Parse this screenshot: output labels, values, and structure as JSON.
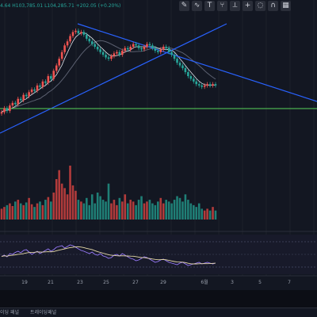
{
  "ohlc_legend": {
    "open_partial": "4.64",
    "high": "H103,785.01",
    "low": "L104,285.71",
    "change": "+202.05 (+0.20%)"
  },
  "toolbar_icons": [
    "pencil-icon",
    "brush-icon",
    "text-icon",
    "fork-icon",
    "ruler-icon",
    "plus-icon",
    "hide-icon",
    "magnet-icon",
    "bars-icon"
  ],
  "tabs": {
    "tab1": "이딩 패널",
    "tab2": "트레이딩패널"
  },
  "colors": {
    "up": "#ef5350",
    "down": "#26a69a",
    "trendline": "#2962ff",
    "support": "#4caf50",
    "ma1": "#e0e3eb",
    "ma2": "#5b6070",
    "rsi": "#9b7cff"
  },
  "chart_data": [
    {
      "type": "candlestick",
      "xlabel": "",
      "ylabel": "",
      "x_ticks": [
        "19",
        "21",
        "23",
        "25",
        "27",
        "29",
        "6월",
        "3",
        "5",
        "7"
      ],
      "note_values": "price axis not visible; close values in relative index units (0-100)",
      "closes": [
        35,
        38,
        36,
        40,
        42,
        41,
        45,
        44,
        48,
        47,
        50,
        52,
        51,
        55,
        54,
        58,
        57,
        62,
        60,
        66,
        70,
        75,
        80,
        85,
        88,
        92,
        95,
        96,
        94,
        95,
        93,
        90,
        88,
        86,
        84,
        82,
        80,
        78,
        76,
        75,
        77,
        79,
        80,
        78,
        81,
        83,
        82,
        84,
        86,
        85,
        83,
        82,
        84,
        86,
        85,
        83,
        81,
        80,
        82,
        84,
        83,
        80,
        78,
        75,
        72,
        70,
        68,
        65,
        62,
        60,
        58,
        56,
        55,
        54,
        55,
        56,
        55,
        56,
        55
      ],
      "volumes": [
        12,
        14,
        16,
        18,
        15,
        20,
        22,
        18,
        16,
        19,
        24,
        17,
        14,
        18,
        20,
        16,
        22,
        25,
        20,
        30,
        45,
        55,
        40,
        35,
        28,
        60,
        38,
        32,
        22,
        20,
        18,
        24,
        16,
        28,
        18,
        30,
        26,
        22,
        20,
        40,
        18,
        22,
        16,
        24,
        20,
        28,
        18,
        22,
        20,
        16,
        22,
        26,
        18,
        20,
        22,
        18,
        16,
        20,
        24,
        18,
        22,
        20,
        18,
        22,
        26,
        24,
        20,
        28,
        22,
        18,
        16,
        14,
        18,
        12,
        10,
        12,
        10,
        14,
        10
      ],
      "rsi": [
        45,
        48,
        44,
        52,
        50,
        55,
        58,
        54,
        60,
        62,
        56,
        50,
        54,
        58,
        52,
        56,
        60,
        64,
        58,
        62,
        68,
        70,
        72,
        66,
        70,
        74,
        72,
        68,
        64,
        60,
        58,
        55,
        52,
        56,
        50,
        48,
        52,
        46,
        44,
        40,
        42,
        48,
        50,
        46,
        52,
        48,
        44,
        40,
        38,
        34,
        36,
        40,
        44,
        42,
        38,
        34,
        30,
        32,
        36,
        38,
        34,
        30,
        28,
        26,
        24,
        28,
        30,
        26,
        22,
        24,
        26,
        28,
        30,
        26,
        28,
        30,
        28,
        26,
        28
      ],
      "trendlines": [
        {
          "name": "rising-trendline"
        },
        {
          "name": "falling-trendline"
        }
      ],
      "support_line": {
        "name": "support-line"
      }
    }
  ]
}
